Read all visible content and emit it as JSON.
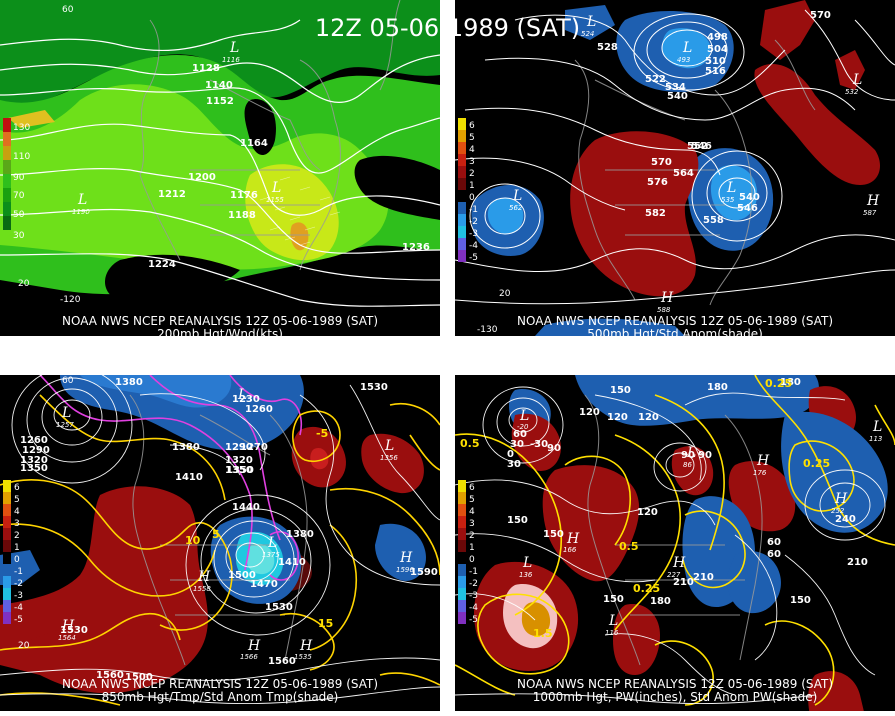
{
  "title": "12Z 05-06-1989 (SAT)",
  "panels": [
    {
      "id": "200mb",
      "caption_line1": "NOAA NWS NCEP REANALYSIS 12Z 05-06-1989 (SAT)",
      "caption_line2": "200mb Hgt/Wnd(kts)",
      "legend": [
        "130",
        "110",
        "90",
        "70",
        "50",
        "30"
      ],
      "contour_labels": [
        "1128",
        "1140",
        "1152",
        "1164",
        "1176",
        "1188",
        "1200",
        "1212",
        "1224",
        "1236"
      ],
      "centers": [
        {
          "type": "L",
          "value": "1116"
        },
        {
          "type": "L",
          "value": "1190"
        },
        {
          "type": "L",
          "value": "1155"
        }
      ],
      "map_labels": [
        "60",
        "-120",
        "20"
      ],
      "colors": {
        "wind_dark": "#0c8f1a",
        "wind_mid": "#2fbf1c",
        "wind_light": "#6ee01a",
        "wind_yellow": "#c8e818",
        "wind_orange": "#e0a020"
      }
    },
    {
      "id": "500mb",
      "caption_line1": "NOAA NWS NCEP REANALYSIS 12Z 05-06-1989 (SAT)",
      "caption_line2": "500mb Hgt/Std Anom(shade)",
      "legend": [
        "6",
        "5",
        "4",
        "3",
        "2",
        "1",
        "0",
        "-1",
        "-2",
        "-3",
        "-4",
        "-5"
      ],
      "contour_labels": [
        "528",
        "534",
        "540",
        "546",
        "552",
        "558",
        "564",
        "570",
        "576",
        "582",
        "498",
        "504",
        "510",
        "516",
        "522",
        "540",
        "546",
        "570"
      ],
      "centers": [
        {
          "type": "L",
          "value": "524"
        },
        {
          "type": "L",
          "value": "493"
        },
        {
          "type": "L",
          "value": "562"
        },
        {
          "type": "L",
          "value": "535"
        },
        {
          "type": "L",
          "value": "532"
        },
        {
          "type": "H",
          "value": "587"
        },
        {
          "type": "H",
          "value": "588"
        },
        {
          "type": "H",
          "value": ""
        },
        {
          "type": "L",
          "value": ""
        }
      ],
      "map_labels": [
        "-130",
        "20"
      ],
      "colors": {
        "pos": "#9a0e0e",
        "neg_dark": "#1e5fb0",
        "neg_light": "#2a9be8"
      }
    },
    {
      "id": "850mb",
      "caption_line1": "NOAA NWS NCEP REANALYSIS 12Z 05-06-1989 (SAT)",
      "caption_line2": "850mb Hgt/Tmp/Std Anom Tmp(shade)",
      "legend": [
        "6",
        "5",
        "4",
        "3",
        "2",
        "1",
        "0",
        "-1",
        "-2",
        "-3",
        "-4",
        "-5"
      ],
      "contour_labels": [
        "1380",
        "1230",
        "1260",
        "1260",
        "1290",
        "1320",
        "1350",
        "1380",
        "1320",
        "1350",
        "1410",
        "1440",
        "1470",
        "1500",
        "1530",
        "1560",
        "1590",
        "1410",
        "1380",
        "1560",
        "1530",
        "1500",
        "1290",
        "1270",
        "1350",
        "1530"
      ],
      "temp_labels": [
        "10",
        "5",
        "-5",
        "15"
      ],
      "centers": [
        {
          "type": "L",
          "value": "1257"
        },
        {
          "type": "L",
          "value": ""
        },
        {
          "type": "L",
          "value": "1375"
        },
        {
          "type": "L",
          "value": "1356"
        },
        {
          "type": "L",
          "value": "1558"
        },
        {
          "type": "H",
          "value": "1564"
        },
        {
          "type": "H",
          "value": "1596"
        },
        {
          "type": "H",
          "value": "1566"
        },
        {
          "type": "H",
          "value": "1535"
        }
      ],
      "map_labels": [
        "60",
        "20"
      ],
      "colors": {
        "pos": "#9a0e0e",
        "neg": "#1e5fb0",
        "hgt": "#ffffff",
        "tmp": "#ffd400",
        "cold": "#e040e0"
      }
    },
    {
      "id": "1000mb",
      "caption_line1": "NOAA NWS NCEP REANALYSIS 12Z 05-06-1989 (SAT)",
      "caption_line2": "1000mb Hgt, PW(inches), Std Anom PW(shade)",
      "legend": [
        "6",
        "5",
        "4",
        "3",
        "2",
        "1",
        "0",
        "-1",
        "-2",
        "-3",
        "-4",
        "-5"
      ],
      "contour_labels": [
        "150",
        "120",
        "90",
        "60",
        "30",
        "0",
        "-30",
        "150",
        "30",
        "120",
        "90",
        "60",
        "210",
        "180",
        "150",
        "120",
        "90",
        "60",
        "240",
        "210",
        "150",
        "180",
        "150",
        "210",
        "180",
        "120"
      ],
      "pw_labels": [
        "0.25",
        "0.5",
        "0.25",
        "0.25",
        "0.5",
        "1.5"
      ],
      "centers": [
        {
          "type": "L",
          "value": "-20"
        },
        {
          "type": "L",
          "value": "136"
        },
        {
          "type": "L",
          "value": "86"
        },
        {
          "type": "L",
          "value": "116"
        },
        {
          "type": "L",
          "value": "113"
        },
        {
          "type": "H",
          "value": "166"
        },
        {
          "type": "H",
          "value": "227"
        },
        {
          "type": "H",
          "value": "252"
        },
        {
          "type": "H",
          "value": "176"
        }
      ],
      "map_labels": [],
      "colors": {
        "pos": "#9a0e0e",
        "neg": "#1e5fb0",
        "pw": "#ffe000",
        "high_pw": "#f4c0c0",
        "core": "#d89000"
      }
    }
  ]
}
